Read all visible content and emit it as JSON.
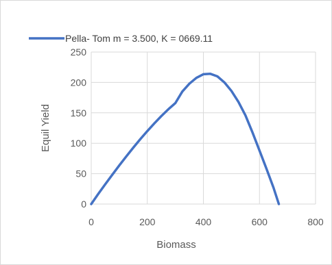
{
  "chart_data": {
    "type": "line",
    "title": "",
    "xlabel": "Biomass",
    "ylabel": "Equil Yield",
    "xlim": [
      0,
      800
    ],
    "ylim": [
      0,
      250
    ],
    "x_ticks": [
      0,
      200,
      400,
      600,
      800
    ],
    "y_ticks": [
      0,
      50,
      100,
      150,
      200,
      250
    ],
    "grid": "vertical-and-horizontal",
    "legend_position": "top-left",
    "series": [
      {
        "name": "Pella- Tom m = 3.500, K = 0669.11",
        "color": "#4472c4",
        "x": [
          0,
          25,
          50,
          75,
          100,
          125,
          150,
          175,
          200,
          225,
          250,
          275,
          300,
          325,
          350,
          375,
          400,
          425,
          450,
          475,
          500,
          525,
          550,
          575,
          600,
          625,
          650,
          669.11
        ],
        "y": [
          0,
          16.6,
          32.6,
          48.2,
          63.5,
          78.4,
          92.8,
          106.7,
          120,
          132.7,
          144.7,
          155.8,
          166.0,
          185.0,
          198.0,
          207.5,
          213.5,
          214.2,
          210.0,
          200.0,
          186.0,
          168.0,
          146.0,
          118.0,
          88.0,
          58.0,
          27.0,
          0
        ]
      }
    ]
  }
}
